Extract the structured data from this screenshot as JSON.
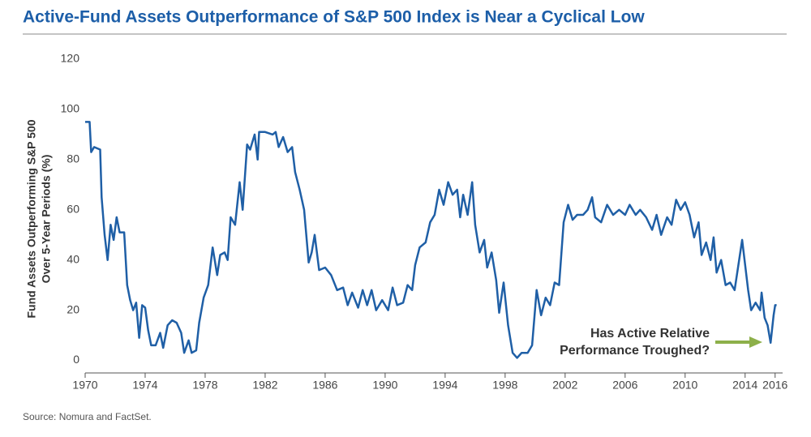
{
  "chart_data": {
    "type": "line",
    "title": "Active-Fund Assets Outperformance of S&P 500 Index is Near a Cyclical Low",
    "y_label": [
      "Fund Assets Outperforming S&P 500",
      "Over 5-Year Periods (%)"
    ],
    "annotation": [
      "Has Active Relative",
      "Performance Troughed?"
    ],
    "source": "Source: Nomura and FactSet.",
    "color": "#1f5fa6",
    "x": [
      1970.0,
      1970.3,
      1970.4,
      1970.6,
      1971.0,
      1971.1,
      1971.3,
      1971.5,
      1971.7,
      1971.9,
      1972.1,
      1972.3,
      1972.6,
      1972.8,
      1973.0,
      1973.2,
      1973.4,
      1973.6,
      1973.8,
      1974.0,
      1974.2,
      1974.4,
      1974.7,
      1975.0,
      1975.2,
      1975.5,
      1975.8,
      1976.1,
      1976.4,
      1976.6,
      1976.9,
      1977.1,
      1977.4,
      1977.6,
      1977.9,
      1978.2,
      1978.5,
      1978.8,
      1979.0,
      1979.3,
      1979.5,
      1979.7,
      1980.0,
      1980.3,
      1980.5,
      1980.8,
      1981.0,
      1981.3,
      1981.5,
      1981.6,
      1982.0,
      1982.5,
      1982.7,
      1982.9,
      1983.2,
      1983.5,
      1983.8,
      1984.0,
      1984.3,
      1984.6,
      1984.9,
      1985.1,
      1985.3,
      1985.6,
      1986.0,
      1986.4,
      1986.8,
      1987.2,
      1987.5,
      1987.8,
      1988.2,
      1988.5,
      1988.8,
      1989.1,
      1989.4,
      1989.8,
      1990.2,
      1990.5,
      1990.8,
      1991.2,
      1991.5,
      1991.8,
      1992.0,
      1992.3,
      1992.7,
      1993.0,
      1993.3,
      1993.6,
      1993.9,
      1994.2,
      1994.5,
      1994.8,
      1995.0,
      1995.2,
      1995.5,
      1995.8,
      1996.0,
      1996.3,
      1996.6,
      1996.8,
      1997.1,
      1997.4,
      1997.6,
      1997.9,
      1998.2,
      1998.5,
      1998.8,
      1999.1,
      1999.5,
      1999.8,
      2000.1,
      2000.4,
      2000.7,
      2001.0,
      2001.3,
      2001.6,
      2001.9,
      2002.2,
      2002.5,
      2002.8,
      2003.2,
      2003.5,
      2003.8,
      2004.0,
      2004.4,
      2004.8,
      2005.2,
      2005.6,
      2006.0,
      2006.3,
      2006.7,
      2007.0,
      2007.4,
      2007.8,
      2008.1,
      2008.4,
      2008.8,
      2009.1,
      2009.4,
      2009.7,
      2010.0,
      2010.3,
      2010.6,
      2010.9,
      2011.1,
      2011.4,
      2011.7,
      2011.9,
      2012.1,
      2012.4,
      2012.7,
      2013.0,
      2013.3,
      2013.6,
      2013.8,
      2014.0,
      2014.2,
      2014.4,
      2014.7,
      2015.0,
      2015.1,
      2015.3,
      2015.5,
      2015.7,
      2015.9,
      2016.0,
      2016.1
    ],
    "values": [
      95,
      95,
      83,
      85,
      84,
      65,
      50,
      40,
      54,
      48,
      57,
      51,
      51,
      30,
      24,
      20,
      23,
      9,
      22,
      21,
      12,
      6,
      6,
      11,
      5,
      14,
      16,
      15,
      11,
      3,
      8,
      3,
      4,
      15,
      25,
      30,
      45,
      34,
      42,
      43,
      40,
      57,
      54,
      71,
      60,
      86,
      84,
      90,
      80,
      91,
      91,
      90,
      91,
      85,
      89,
      83,
      85,
      75,
      68,
      60,
      39,
      43,
      50,
      36,
      37,
      34,
      28,
      29,
      22,
      27,
      21,
      28,
      22,
      28,
      20,
      24,
      20,
      29,
      22,
      23,
      30,
      28,
      38,
      45,
      47,
      55,
      58,
      68,
      62,
      71,
      66,
      68,
      57,
      66,
      58,
      71,
      54,
      43,
      48,
      37,
      43,
      32,
      19,
      31,
      14,
      3,
      1,
      3,
      3,
      6,
      28,
      18,
      25,
      22,
      31,
      30,
      55,
      62,
      56,
      58,
      58,
      60,
      65,
      57,
      55,
      62,
      58,
      60,
      58,
      62,
      58,
      60,
      57,
      52,
      58,
      50,
      57,
      54,
      64,
      60,
      63,
      58,
      49,
      55,
      42,
      47,
      40,
      49,
      35,
      40,
      30,
      31,
      28,
      40,
      48,
      38,
      28,
      20,
      23,
      20,
      27,
      17,
      14,
      7,
      18,
      22,
      22
    ],
    "xlim": [
      1970,
      2016.5
    ],
    "xticks": [
      1970,
      1974,
      1978,
      1982,
      1986,
      1990,
      1994,
      1998,
      2002,
      2006,
      2010,
      2014,
      2016
    ],
    "ylim": [
      -5,
      120
    ],
    "yticks": [
      0,
      20,
      40,
      60,
      80,
      100,
      120
    ]
  }
}
